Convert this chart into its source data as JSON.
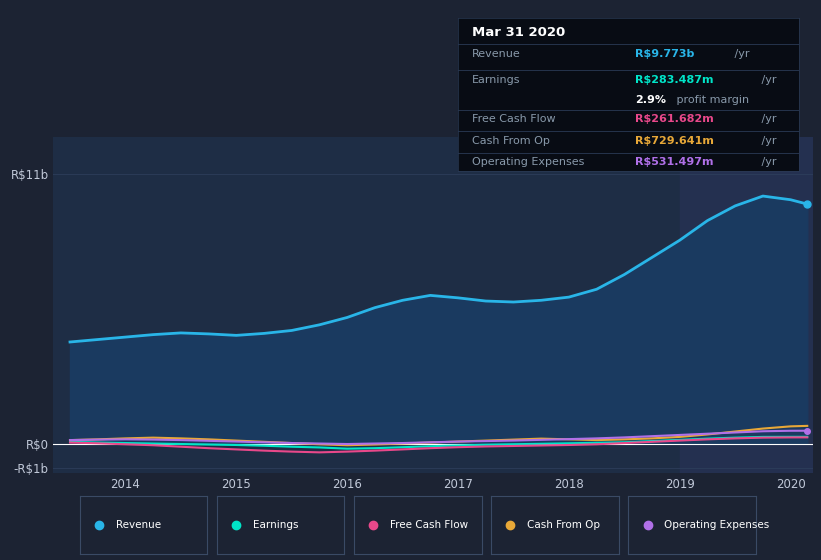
{
  "bg_color": "#1c2333",
  "plot_bg_color": "#1e2d45",
  "plot_bg_highlight": "#243050",
  "text_color": "#c0c8d8",
  "grid_color": "#2e3f5c",
  "title_text": "Mar 31 2020",
  "tooltip_bg": "#080c14",
  "tooltip_border": "#2a3a55",
  "ylim_min": -1200000000.0,
  "ylim_max": 12500000000.0,
  "yticks": [
    -1000000000.0,
    0.0,
    11000000000.0
  ],
  "ytick_labels": [
    "-R$1b",
    "R$0",
    "R$11b"
  ],
  "xtick_labels": [
    "2014",
    "2015",
    "2016",
    "2017",
    "2018",
    "2019",
    "2020"
  ],
  "xtick_positions": [
    2014,
    2015,
    2016,
    2017,
    2018,
    2019,
    2020
  ],
  "legend_items": [
    "Revenue",
    "Earnings",
    "Free Cash Flow",
    "Cash From Op",
    "Operating Expenses"
  ],
  "legend_colors": [
    "#29b5e8",
    "#00e5c8",
    "#e8488a",
    "#e8a838",
    "#b070e8"
  ],
  "revenue_color": "#29b5e8",
  "earnings_color": "#00e5c8",
  "fcf_color": "#e8488a",
  "cashop_color": "#e8a838",
  "opex_color": "#b070e8",
  "revenue_fill_color": "#1a3a60",
  "tooltip_title_color": "#ffffff",
  "tooltip_label_color": "#8899aa",
  "revenue_val_color": "#29b5e8",
  "earnings_val_color": "#00e5c8",
  "fcf_val_color": "#e8488a",
  "cashop_val_color": "#e8a838",
  "opex_val_color": "#b070e8",
  "x": [
    2013.5,
    2013.75,
    2014.0,
    2014.25,
    2014.5,
    2014.75,
    2015.0,
    2015.25,
    2015.5,
    2015.75,
    2016.0,
    2016.25,
    2016.5,
    2016.75,
    2017.0,
    2017.25,
    2017.5,
    2017.75,
    2018.0,
    2018.25,
    2018.5,
    2018.75,
    2019.0,
    2019.25,
    2019.5,
    2019.75,
    2020.0,
    2020.15
  ],
  "revenue": [
    4150000000.0,
    4250000000.0,
    4350000000.0,
    4450000000.0,
    4520000000.0,
    4480000000.0,
    4420000000.0,
    4500000000.0,
    4620000000.0,
    4850000000.0,
    5150000000.0,
    5550000000.0,
    5850000000.0,
    6050000000.0,
    5950000000.0,
    5820000000.0,
    5780000000.0,
    5850000000.0,
    5980000000.0,
    6300000000.0,
    6900000000.0,
    7600000000.0,
    8300000000.0,
    9100000000.0,
    9700000000.0,
    10100000000.0,
    9950000000.0,
    9773000000.0
  ],
  "earnings": [
    80000000.0,
    50000000.0,
    30000000.0,
    10000000.0,
    -10000000.0,
    -30000000.0,
    -50000000.0,
    -80000000.0,
    -120000000.0,
    -150000000.0,
    -200000000.0,
    -180000000.0,
    -140000000.0,
    -100000000.0,
    -70000000.0,
    -40000000.0,
    -20000000.0,
    0.0,
    20000000.0,
    40000000.0,
    60000000.0,
    110000000.0,
    160000000.0,
    210000000.0,
    250000000.0,
    280000000.0,
    283000000.0,
    283500000.0
  ],
  "fcf": [
    50000000.0,
    20000000.0,
    -20000000.0,
    -60000000.0,
    -120000000.0,
    -180000000.0,
    -230000000.0,
    -280000000.0,
    -320000000.0,
    -350000000.0,
    -320000000.0,
    -280000000.0,
    -230000000.0,
    -180000000.0,
    -140000000.0,
    -110000000.0,
    -90000000.0,
    -70000000.0,
    -50000000.0,
    -20000000.0,
    30000000.0,
    80000000.0,
    130000000.0,
    180000000.0,
    220000000.0,
    250000000.0,
    260000000.0,
    261700000.0
  ],
  "cashop": [
    150000000.0,
    180000000.0,
    220000000.0,
    250000000.0,
    220000000.0,
    180000000.0,
    130000000.0,
    80000000.0,
    30000000.0,
    -20000000.0,
    -60000000.0,
    -30000000.0,
    10000000.0,
    50000000.0,
    90000000.0,
    130000000.0,
    170000000.0,
    210000000.0,
    180000000.0,
    150000000.0,
    180000000.0,
    220000000.0,
    280000000.0,
    380000000.0,
    500000000.0,
    620000000.0,
    710000000.0,
    729600000.0
  ],
  "opex": [
    150000000.0,
    170000000.0,
    180000000.0,
    170000000.0,
    150000000.0,
    120000000.0,
    90000000.0,
    60000000.0,
    30000000.0,
    10000000.0,
    -10000000.0,
    10000000.0,
    30000000.0,
    60000000.0,
    90000000.0,
    110000000.0,
    130000000.0,
    160000000.0,
    190000000.0,
    220000000.0,
    260000000.0,
    310000000.0,
    360000000.0,
    410000000.0,
    460000000.0,
    510000000.0,
    530000000.0,
    531500000.0
  ],
  "highlight_x_start": 2019.0,
  "xlim_min": 2013.35,
  "xlim_max": 2020.2
}
